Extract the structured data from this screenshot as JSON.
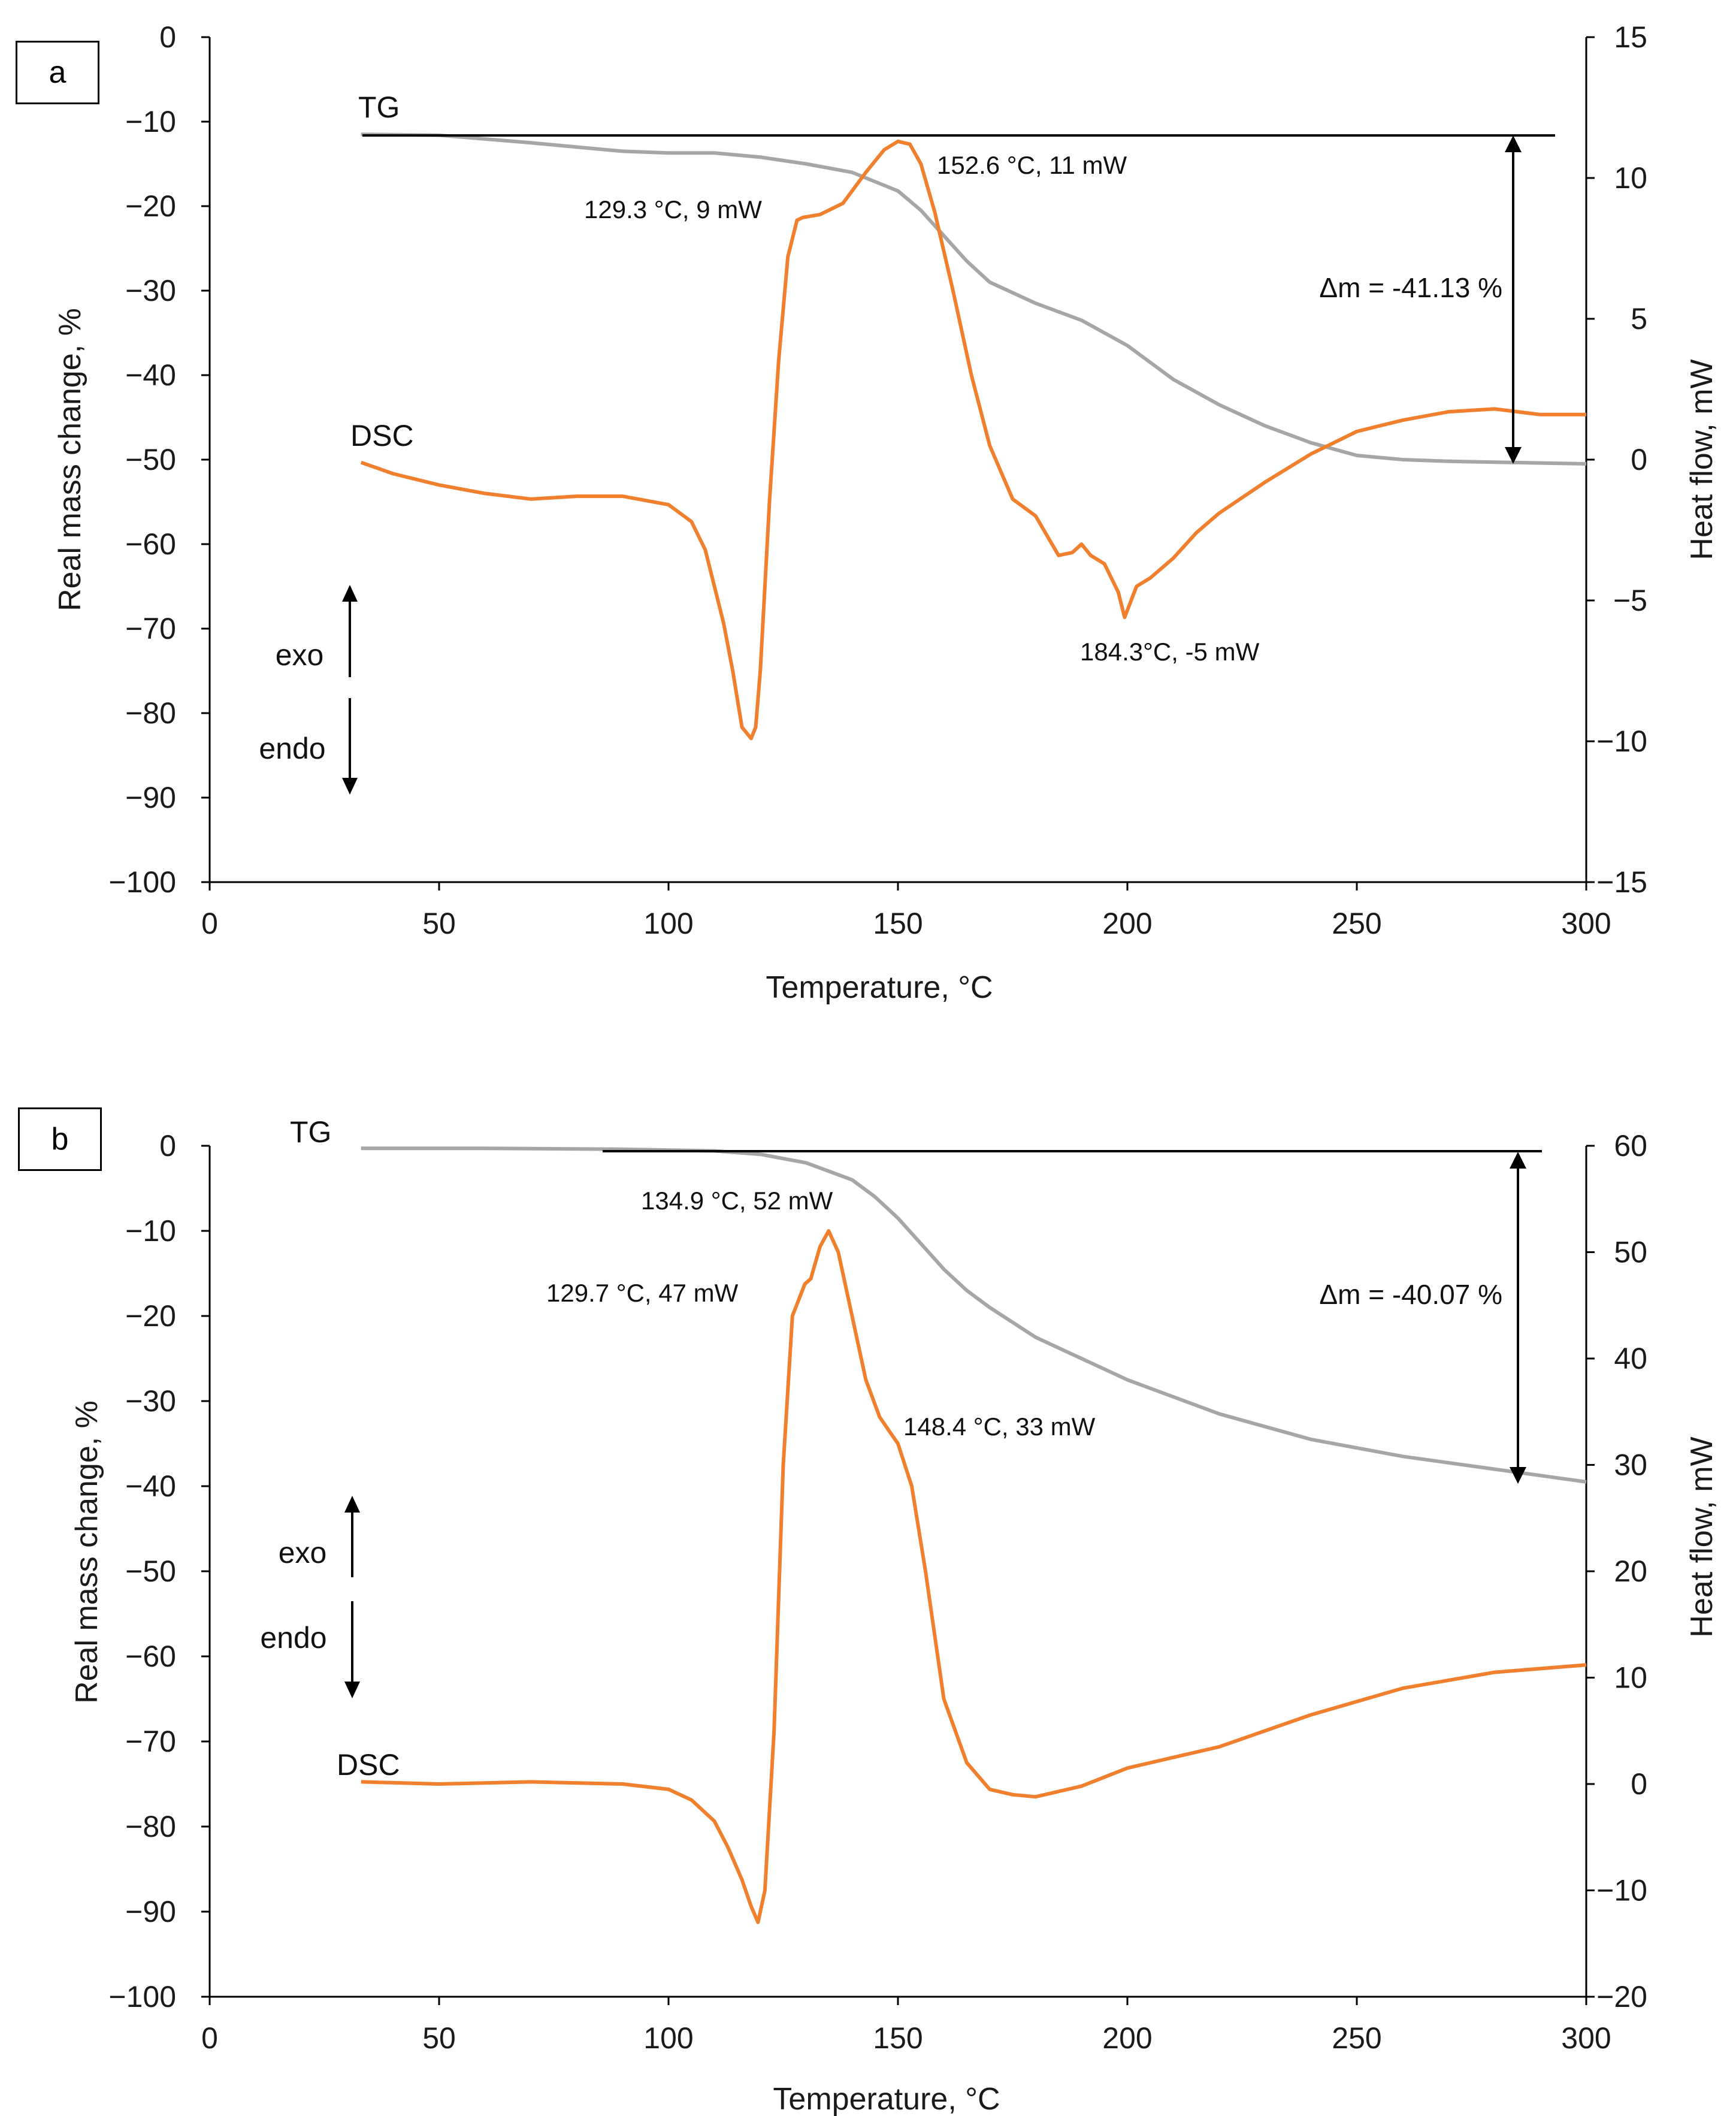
{
  "colors": {
    "tg": "#a6a6a6",
    "dsc": "#f07f2e",
    "axis": "#000000",
    "text": "#1a1a1a"
  },
  "chart_data": [
    {
      "type": "line",
      "panel_label": "a",
      "xlabel": "Temperature, °C",
      "ylabel_left": "Real mass change, %",
      "ylabel_right": "Heat flow, mW",
      "xlim": [
        0,
        300
      ],
      "ylim_left": [
        -100,
        0
      ],
      "ylim_right": [
        -15,
        15
      ],
      "x_ticks": [
        "0",
        "50",
        "100",
        "150",
        "200",
        "250",
        "300"
      ],
      "y_left_ticks": [
        "0",
        "−10",
        "−20",
        "−30",
        "−40",
        "−50",
        "−60",
        "−70",
        "−80",
        "−90",
        "−100"
      ],
      "y_right_ticks": [
        "15",
        "10",
        "5",
        "0",
        "−5",
        "−10",
        "−15"
      ],
      "grid": false,
      "series": [
        {
          "name": "TG",
          "axis": "left",
          "color": "#a6a6a6",
          "x": [
            33,
            50,
            70,
            90,
            100,
            110,
            120,
            130,
            140,
            150,
            155,
            160,
            165,
            170,
            180,
            190,
            200,
            210,
            220,
            230,
            240,
            250,
            260,
            270,
            280,
            290,
            300
          ],
          "y": [
            -11.5,
            -11.6,
            -12.5,
            -13.5,
            -13.7,
            -13.7,
            -14.2,
            -15,
            -16,
            -18.2,
            -20.5,
            -23.5,
            -26.5,
            -29,
            -31.5,
            -33.5,
            -36.5,
            -40.5,
            -43.5,
            -46,
            -48,
            -49.5,
            -50,
            -50.2,
            -50.3,
            -50.4,
            -50.5
          ]
        },
        {
          "name": "DSC",
          "axis": "right",
          "color": "#f07f2e",
          "x": [
            33,
            40,
            50,
            60,
            70,
            80,
            90,
            100,
            105,
            108,
            110,
            112,
            114,
            116,
            118,
            119,
            120,
            121,
            122,
            124,
            126,
            128,
            129.3,
            133,
            138,
            143,
            147,
            150,
            152.6,
            155,
            158,
            162,
            166,
            170,
            175,
            180,
            185,
            188,
            190,
            192,
            195,
            198,
            199.4,
            202,
            205,
            210,
            215,
            220,
            230,
            240,
            250,
            260,
            270,
            280,
            290,
            300
          ],
          "y": [
            -0.1,
            -0.5,
            -0.9,
            -1.2,
            -1.4,
            -1.3,
            -1.3,
            -1.6,
            -2.2,
            -3.2,
            -4.5,
            -5.8,
            -7.5,
            -9.5,
            -9.9,
            -9.5,
            -7.5,
            -4.5,
            -1.5,
            3.5,
            7.2,
            8.5,
            8.6,
            8.7,
            9.1,
            10.2,
            11.0,
            11.3,
            11.2,
            10.5,
            8.8,
            6.0,
            3.0,
            0.5,
            -1.4,
            -2.0,
            -3.4,
            -3.3,
            -3.0,
            -3.4,
            -3.7,
            -4.7,
            -5.6,
            -4.5,
            -4.2,
            -3.5,
            -2.6,
            -1.9,
            -0.8,
            0.2,
            1.0,
            1.4,
            1.7,
            1.8,
            1.6,
            1.6
          ]
        }
      ],
      "annotations": [
        {
          "text": "152.6 °C, 11 mW"
        },
        {
          "text": "129.3 °C, 9 mW"
        },
        {
          "text": "184.3°C, -5 mW"
        },
        {
          "text": "Δm = -41.13 %"
        }
      ],
      "labels": {
        "tg": "TG",
        "dsc": "DSC",
        "exo": "exo",
        "endo": "endo"
      }
    },
    {
      "type": "line",
      "panel_label": "b",
      "xlabel": "Temperature, °C",
      "ylabel_left": "Real mass change, %",
      "ylabel_right": "Heat flow, mW",
      "xlim": [
        0,
        300
      ],
      "ylim_left": [
        -100,
        0
      ],
      "ylim_right": [
        -20,
        60
      ],
      "x_ticks": [
        "0",
        "50",
        "100",
        "150",
        "200",
        "250",
        "300"
      ],
      "y_left_ticks": [
        "0",
        "−10",
        "−20",
        "−30",
        "−40",
        "−50",
        "−60",
        "−70",
        "−80",
        "−90",
        "−100"
      ],
      "y_right_ticks": [
        "60",
        "50",
        "40",
        "30",
        "20",
        "10",
        "0",
        "−10",
        "−20"
      ],
      "grid": false,
      "series": [
        {
          "name": "TG",
          "axis": "left",
          "color": "#a6a6a6",
          "x": [
            33,
            60,
            90,
            110,
            120,
            130,
            140,
            145,
            150,
            155,
            160,
            165,
            170,
            180,
            190,
            200,
            220,
            240,
            260,
            280,
            300
          ],
          "y": [
            -0.3,
            -0.3,
            -0.4,
            -0.6,
            -1.0,
            -2.0,
            -4.0,
            -6.0,
            -8.5,
            -11.5,
            -14.5,
            -17.0,
            -19.0,
            -22.5,
            -25.0,
            -27.5,
            -31.5,
            -34.5,
            -36.5,
            -38.0,
            -39.5
          ]
        },
        {
          "name": "DSC",
          "axis": "right",
          "color": "#f07f2e",
          "x": [
            33,
            50,
            70,
            90,
            100,
            105,
            110,
            113,
            116,
            118,
            119.5,
            121,
            123,
            125,
            127,
            129.7,
            131,
            133,
            134.9,
            137,
            140,
            143,
            146,
            148.4,
            150,
            153,
            156,
            160,
            165,
            170,
            175,
            180,
            190,
            200,
            220,
            240,
            260,
            280,
            300
          ],
          "y": [
            0.2,
            0.0,
            0.2,
            0.0,
            -0.5,
            -1.5,
            -3.5,
            -6.0,
            -9.0,
            -11.5,
            -13.0,
            -10.0,
            5.0,
            30.0,
            44.0,
            47.0,
            47.5,
            50.5,
            52.0,
            50.0,
            44.0,
            38.0,
            34.5,
            33.0,
            32.0,
            28.0,
            20.0,
            8.0,
            2.0,
            -0.5,
            -1.0,
            -1.2,
            -0.2,
            1.5,
            3.5,
            6.5,
            9.0,
            10.5,
            11.2
          ]
        }
      ],
      "annotations": [
        {
          "text": "134.9  °C, 52 mW"
        },
        {
          "text": "129.7  °C, 47 mW"
        },
        {
          "text": "148.4 °C,  33 mW"
        },
        {
          "text": "Δm = -40.07 %"
        }
      ],
      "labels": {
        "tg": "TG",
        "dsc": "DSC",
        "exo": "exo",
        "endo": "endo"
      }
    }
  ]
}
